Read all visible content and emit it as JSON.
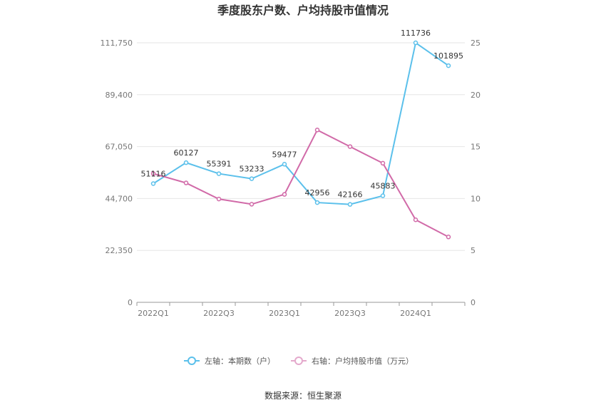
{
  "chart_data": {
    "type": "line",
    "title": "季度股东户数、户均持股市值情况",
    "source": "数据来源：恒生聚源",
    "x": [
      "2022Q1",
      "2022Q2",
      "2022Q3",
      "2022Q4",
      "2023Q1",
      "2023Q2",
      "2023Q3",
      "2023Q4",
      "2024Q1",
      "2024Q2"
    ],
    "x_tick_labels": [
      "2022Q1",
      "2022Q3",
      "2023Q1",
      "2023Q3",
      "2024Q1"
    ],
    "y_left": {
      "ylim": [
        0,
        111750
      ],
      "ticks": [
        "0",
        "22,350",
        "44,700",
        "67,050",
        "89,400",
        "111,750"
      ]
    },
    "y_right": {
      "ylim": [
        0,
        25
      ],
      "ticks": [
        "0",
        "5",
        "10",
        "15",
        "20",
        "25"
      ]
    },
    "series": [
      {
        "name": "左轴：本期数（户）",
        "axis": "left",
        "color": "#5bc0eb",
        "values": [
          51116,
          60127,
          55391,
          53233,
          59477,
          42956,
          42166,
          45883,
          111736,
          101895
        ],
        "labels": [
          "51116",
          "60127",
          "55391",
          "53233",
          "59477",
          "42956",
          "42166",
          "45883",
          "111736",
          "101895"
        ]
      },
      {
        "name": "右轴：户均持股市值（万元）",
        "axis": "right",
        "color": "#d16aa8",
        "values": [
          12.4,
          11.5,
          9.95,
          9.45,
          10.4,
          16.6,
          15.0,
          13.4,
          7.95,
          6.3
        ]
      }
    ],
    "grid": true,
    "legend_position": "bottom"
  }
}
